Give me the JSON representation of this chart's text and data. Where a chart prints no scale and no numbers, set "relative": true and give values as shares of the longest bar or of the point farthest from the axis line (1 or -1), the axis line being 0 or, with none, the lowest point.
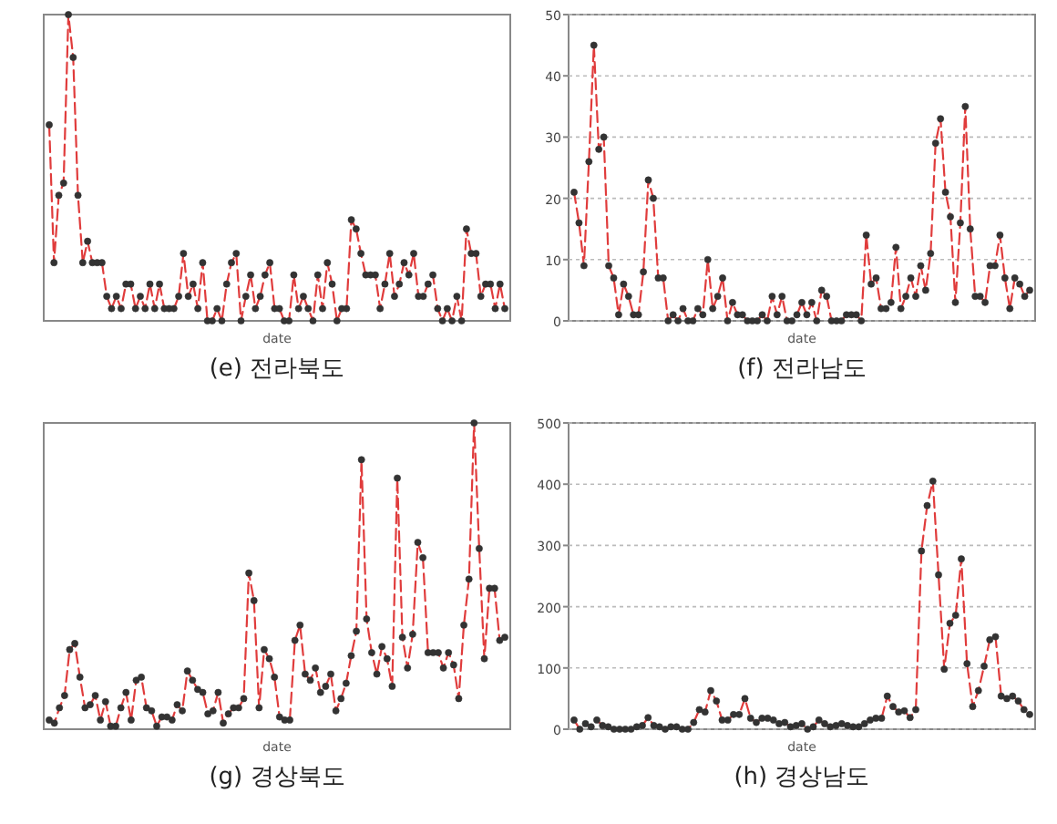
{
  "chart_data": [
    {
      "type": "line",
      "title": "(e) 전라북도",
      "xlabel": "date",
      "relative": true,
      "marker": "circle",
      "line_style": "dashed",
      "categories": [
        null,
        null,
        null,
        null,
        null,
        null,
        null,
        null,
        null,
        null,
        null,
        null,
        null,
        null,
        null,
        null,
        null,
        null,
        null,
        null,
        null,
        null,
        null,
        null,
        null,
        null,
        null,
        null,
        null,
        null,
        null,
        null,
        null,
        null,
        null,
        null,
        null,
        null,
        null,
        null,
        null,
        null,
        null,
        null,
        null,
        null,
        null,
        null,
        null,
        null,
        null,
        null,
        null,
        null,
        null,
        null,
        null,
        null,
        null,
        null,
        null,
        null,
        null,
        null,
        null,
        null,
        null,
        null,
        null,
        null,
        null,
        null,
        null,
        null,
        null,
        null,
        null,
        null,
        null,
        null,
        null,
        null,
        null,
        null,
        null,
        null,
        null,
        null,
        null,
        null,
        null,
        null,
        null,
        null,
        null,
        null
      ],
      "series": [
        {
          "color": "#e03c3c",
          "values": [
            0.64,
            0.19,
            0.41,
            0.45,
            1,
            0.86,
            0.41,
            0.19,
            0.26,
            0.19,
            0.19,
            0.19,
            0.08,
            0.04,
            0.08,
            0.04,
            0.12,
            0.12,
            0.04,
            0.08,
            0.04,
            0.12,
            0.04,
            0.12,
            0.04,
            0.04,
            0.04,
            0.08,
            0.22,
            0.08,
            0.12,
            0.04,
            0.19,
            0,
            0,
            0.04,
            0,
            0.12,
            0.19,
            0.22,
            0,
            0.08,
            0.15,
            0.04,
            0.08,
            0.15,
            0.19,
            0.04,
            0.04,
            0,
            0,
            0.15,
            0.04,
            0.08,
            0.04,
            0,
            0.15,
            0.04,
            0.19,
            0.12,
            0,
            0.04,
            0.04,
            0.33,
            0.3,
            0.22,
            0.15,
            0.15,
            0.15,
            0.04,
            0.12,
            0.22,
            0.08,
            0.12,
            0.19,
            0.15,
            0.22,
            0.08,
            0.08,
            0.12,
            0.15,
            0.04,
            0,
            0.04,
            0,
            0.08,
            0,
            0.3,
            0.22,
            0.22,
            0.08,
            0.12,
            0.12,
            0.04,
            0.12,
            0.04
          ]
        }
      ]
    },
    {
      "type": "line",
      "title": "(f) 전라남도",
      "xlabel": "date",
      "ylim": [
        0,
        50
      ],
      "yticks": [
        0,
        10,
        20,
        30,
        40,
        50
      ],
      "grid": "y",
      "marker": "circle",
      "line_style": "dashed",
      "categories": [
        null,
        null,
        null,
        null,
        null,
        null,
        null,
        null,
        null,
        null,
        null,
        null,
        null,
        null,
        null,
        null,
        null,
        null,
        null,
        null,
        null,
        null,
        null,
        null,
        null,
        null,
        null,
        null,
        null,
        null,
        null,
        null,
        null,
        null,
        null,
        null,
        null,
        null,
        null,
        null,
        null,
        null,
        null,
        null,
        null,
        null,
        null,
        null,
        null,
        null,
        null,
        null,
        null,
        null,
        null,
        null,
        null,
        null,
        null,
        null,
        null,
        null,
        null,
        null,
        null,
        null,
        null,
        null,
        null,
        null,
        null,
        null,
        null,
        null,
        null,
        null,
        null,
        null,
        null,
        null,
        null,
        null,
        null,
        null,
        null,
        null,
        null,
        null,
        null,
        null,
        null,
        null,
        null
      ],
      "series": [
        {
          "color": "#e03c3c",
          "values": [
            21,
            16,
            9,
            26,
            45,
            28,
            30,
            9,
            7,
            1,
            6,
            4,
            1,
            1,
            8,
            23,
            20,
            7,
            7,
            0,
            1,
            0,
            2,
            0,
            0,
            2,
            1,
            10,
            2,
            4,
            7,
            0,
            3,
            1,
            1,
            0,
            0,
            0,
            1,
            0,
            4,
            1,
            4,
            0,
            0,
            1,
            3,
            1,
            3,
            0,
            5,
            4,
            0,
            0,
            0,
            1,
            1,
            1,
            0,
            14,
            6,
            7,
            2,
            2,
            3,
            12,
            2,
            4,
            7,
            4,
            9,
            5,
            11,
            29,
            33,
            21,
            17,
            3,
            16,
            35,
            15,
            4,
            4,
            3,
            9,
            9,
            14,
            7,
            2,
            7,
            6,
            4,
            5
          ]
        }
      ]
    },
    {
      "type": "line",
      "title": "(g) 경상북도",
      "xlabel": "date",
      "relative": true,
      "marker": "circle",
      "line_style": "dashed",
      "categories": [
        null,
        null,
        null,
        null,
        null,
        null,
        null,
        null,
        null,
        null,
        null,
        null,
        null,
        null,
        null,
        null,
        null,
        null,
        null,
        null,
        null,
        null,
        null,
        null,
        null,
        null,
        null,
        null,
        null,
        null,
        null,
        null,
        null,
        null,
        null,
        null,
        null,
        null,
        null,
        null,
        null,
        null,
        null,
        null,
        null,
        null,
        null,
        null,
        null,
        null,
        null,
        null,
        null,
        null,
        null,
        null,
        null,
        null,
        null,
        null,
        null,
        null,
        null,
        null,
        null,
        null,
        null,
        null,
        null,
        null,
        null,
        null,
        null,
        null,
        null,
        null,
        null,
        null,
        null,
        null,
        null,
        null,
        null,
        null,
        null,
        null,
        null,
        null,
        null,
        null
      ],
      "series": [
        {
          "color": "#e03c3c",
          "values": [
            0.03,
            0.02,
            0.07,
            0.11,
            0.26,
            0.28,
            0.17,
            0.07,
            0.08,
            0.11,
            0.03,
            0.09,
            0.01,
            0.01,
            0.07,
            0.12,
            0.03,
            0.16,
            0.17,
            0.07,
            0.06,
            0.01,
            0.04,
            0.04,
            0.03,
            0.08,
            0.06,
            0.19,
            0.16,
            0.13,
            0.12,
            0.05,
            0.06,
            0.12,
            0.02,
            0.05,
            0.07,
            0.07,
            0.1,
            0.51,
            0.42,
            0.07,
            0.26,
            0.23,
            0.17,
            0.04,
            0.03,
            0.03,
            0.29,
            0.34,
            0.18,
            0.16,
            0.2,
            0.12,
            0.14,
            0.18,
            0.06,
            0.1,
            0.15,
            0.24,
            0.32,
            0.88,
            0.36,
            0.25,
            0.18,
            0.27,
            0.23,
            0.14,
            0.82,
            0.3,
            0.2,
            0.31,
            0.61,
            0.56,
            0.25,
            0.25,
            0.25,
            0.2,
            0.25,
            0.21,
            0.1,
            0.34,
            0.49,
            1,
            0.59,
            0.23,
            0.46,
            0.46,
            0.29,
            0.3
          ]
        }
      ]
    },
    {
      "type": "line",
      "title": "(h) 경상남도",
      "xlabel": "date",
      "ylim": [
        0,
        500
      ],
      "yticks": [
        0,
        100,
        200,
        300,
        400,
        500
      ],
      "grid": "y",
      "marker": "circle",
      "line_style": "dashed",
      "categories": [
        null,
        null,
        null,
        null,
        null,
        null,
        null,
        null,
        null,
        null,
        null,
        null,
        null,
        null,
        null,
        null,
        null,
        null,
        null,
        null,
        null,
        null,
        null,
        null,
        null,
        null,
        null,
        null,
        null,
        null,
        null,
        null,
        null,
        null,
        null,
        null,
        null,
        null,
        null,
        null,
        null,
        null,
        null,
        null,
        null,
        null,
        null,
        null,
        null,
        null,
        null,
        null,
        null,
        null,
        null,
        null,
        null,
        null,
        null,
        null,
        null,
        null,
        null,
        null,
        null,
        null,
        null,
        null,
        null,
        null,
        null,
        null,
        null,
        null,
        null,
        null,
        null,
        null,
        null,
        null,
        null
      ],
      "series": [
        {
          "color": "#e03c3c",
          "values": [
            15,
            0,
            9,
            4,
            15,
            6,
            4,
            0,
            0,
            0,
            0,
            4,
            6,
            19,
            6,
            4,
            0,
            4,
            4,
            0,
            0,
            11,
            32,
            28,
            63,
            46,
            15,
            15,
            24,
            24,
            50,
            18,
            11,
            18,
            18,
            15,
            9,
            11,
            4,
            6,
            9,
            0,
            4,
            15,
            9,
            4,
            6,
            9,
            6,
            4,
            4,
            9,
            15,
            18,
            18,
            54,
            37,
            28,
            30,
            19,
            32,
            291,
            365,
            405,
            252,
            98,
            173,
            186,
            278,
            107,
            37,
            63,
            103,
            146,
            151,
            54,
            50,
            54,
            46,
            32,
            24
          ]
        }
      ]
    }
  ]
}
